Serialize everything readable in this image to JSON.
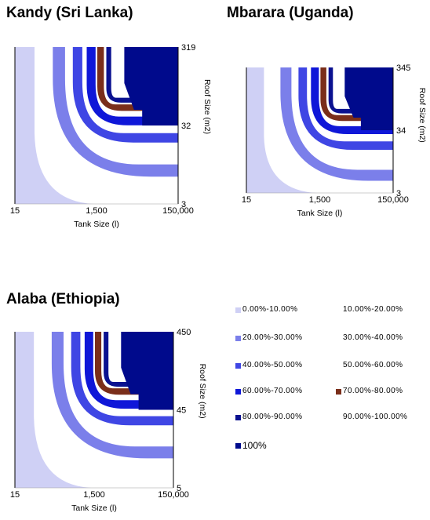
{
  "chart_data": [
    {
      "type": "heatmap",
      "title": "Kandy (Sri Lanka)",
      "xlabel": "Tank Size (l)",
      "ylabel": "Roof Size (m2)",
      "x_ticks": [
        "15",
        "1,500",
        "150,000"
      ],
      "y_ticks": [
        "319",
        "32",
        "3"
      ],
      "x_scale": "log",
      "y_scale": "log"
    },
    {
      "type": "heatmap",
      "title": "Mbarara (Uganda)",
      "xlabel": "Tank Size (l)",
      "ylabel": "Roof Size (m2)",
      "x_ticks": [
        "15",
        "1,500",
        "150,000"
      ],
      "y_ticks": [
        "345",
        "34",
        "3"
      ],
      "x_scale": "log",
      "y_scale": "log"
    },
    {
      "type": "heatmap",
      "title": "Alaba (Ethiopia)",
      "xlabel": "Tank Size (l)",
      "ylabel": "Roof Size (m2)",
      "x_ticks": [
        "15",
        "1,500",
        "150,000"
      ],
      "y_ticks": [
        "450",
        "45",
        "5"
      ],
      "x_scale": "log",
      "y_scale": "log"
    }
  ],
  "legend": {
    "placement": "right",
    "items": [
      {
        "label": "0.00%-10.00%",
        "color": "#cfd0f5"
      },
      {
        "label": "10.00%-20.00%",
        "color": "#ffffff"
      },
      {
        "label": "20.00%-30.00%",
        "color": "#7b7fea"
      },
      {
        "label": "30.00%-40.00%",
        "color": "#ffffff"
      },
      {
        "label": "40.00%-50.00%",
        "color": "#3f46e4"
      },
      {
        "label": "50.00%-60.00%",
        "color": "#ffffff"
      },
      {
        "label": "60.00%-70.00%",
        "color": "#0f17d8"
      },
      {
        "label": "70.00%-80.00%",
        "color": "#7a2e1a"
      },
      {
        "label": "80.00%-90.00%",
        "color": "#0a1190"
      },
      {
        "label": "90.00%-100.00%",
        "color": "#ffffff"
      },
      {
        "label": "100%",
        "color": "#000a8c"
      }
    ]
  }
}
